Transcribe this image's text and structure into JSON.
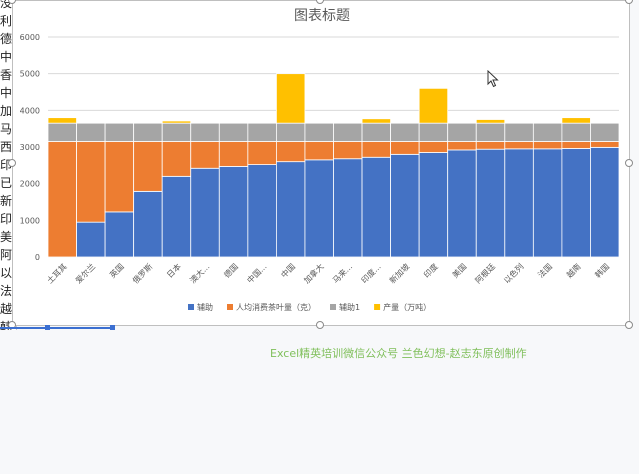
{
  "sheet": {
    "left_column": [
      "没",
      "利",
      "德",
      "中",
      "香",
      "中",
      "加",
      "马",
      "西",
      "印",
      "已",
      "新",
      "印",
      "美",
      "阿",
      "以",
      "法",
      "越",
      "韩"
    ]
  },
  "footer_note": "Excel精英培训微信公众号 兰色幻想-赵志东原创制作",
  "colors": {
    "辅助": "#4472c4",
    "人均消费茶叶量（克）": "#ed7d31",
    "辅助1": "#a5a5a5",
    "产量（万吨）": "#ffc000"
  },
  "chart_data": {
    "type": "bar",
    "stacked": true,
    "title": "图表标题",
    "xlabel": "",
    "ylabel": "",
    "ylim": [
      0,
      6000
    ],
    "yticks": [
      "0",
      "1000",
      "2000",
      "3000",
      "4000",
      "5000",
      "6000"
    ],
    "grid": true,
    "legend_position": "bottom",
    "categories": [
      "土耳其",
      "爱尔兰",
      "英国",
      "俄罗斯",
      "日本",
      "澳大...",
      "德国",
      "中国...",
      "中国",
      "加拿大",
      "马来...",
      "印度...",
      "新加坡",
      "印度",
      "美国",
      "阿根廷",
      "以色列",
      "法国",
      "越南",
      "韩国"
    ],
    "series": [
      {
        "name": "辅助",
        "values": [
          0,
          950,
          1230,
          1790,
          2200,
          2420,
          2470,
          2520,
          2600,
          2650,
          2680,
          2720,
          2800,
          2850,
          2920,
          2940,
          2950,
          2950,
          2960,
          2990
        ]
      },
      {
        "name": "人均消费茶叶量（克）",
        "values": [
          3150,
          2200,
          1920,
          1360,
          950,
          730,
          680,
          630,
          550,
          500,
          470,
          430,
          350,
          300,
          230,
          210,
          200,
          200,
          190,
          160
        ]
      },
      {
        "name": "辅助1",
        "values": [
          500,
          500,
          500,
          500,
          500,
          500,
          500,
          500,
          500,
          500,
          500,
          500,
          500,
          500,
          500,
          500,
          500,
          500,
          500,
          500
        ]
      },
      {
        "name": "产量（万吨）",
        "values": [
          150,
          0,
          0,
          0,
          60,
          0,
          0,
          0,
          1350,
          0,
          0,
          120,
          0,
          950,
          0,
          100,
          0,
          0,
          150,
          0
        ]
      }
    ]
  }
}
